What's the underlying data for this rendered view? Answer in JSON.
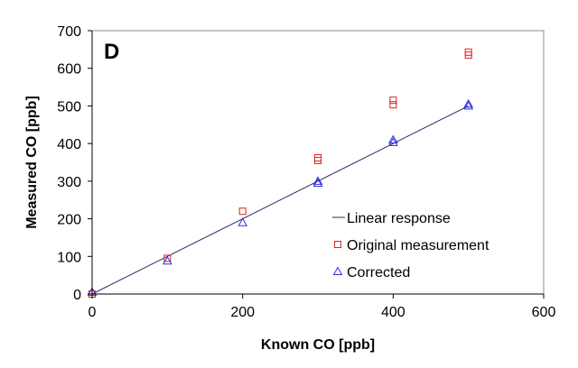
{
  "chart_data": {
    "type": "scatter",
    "panel_label": "D",
    "xlabel": "Known CO [ppb]",
    "ylabel": "Measured CO [ppb]",
    "xlim": [
      0,
      600
    ],
    "ylim": [
      0,
      700
    ],
    "xticks": [
      "0",
      "200",
      "400",
      "600"
    ],
    "yticks": [
      "0",
      "100",
      "200",
      "300",
      "400",
      "500",
      "600",
      "700"
    ],
    "grid": false,
    "legend_position": "bottom-right",
    "series": [
      {
        "name": "Linear response",
        "kind": "line",
        "color": "#2b2b6b",
        "points": [
          [
            0,
            0
          ],
          [
            500,
            500
          ]
        ]
      },
      {
        "name": "Original measurement",
        "kind": "square",
        "color": "#e02020",
        "points": [
          [
            0,
            0
          ],
          [
            100,
            95
          ],
          [
            200,
            220
          ],
          [
            300,
            355
          ],
          [
            300,
            362
          ],
          [
            400,
            503
          ],
          [
            400,
            515
          ],
          [
            500,
            635
          ],
          [
            500,
            643
          ]
        ]
      },
      {
        "name": "Corrected",
        "kind": "triangle",
        "color": "#3030e0",
        "points": [
          [
            0,
            5
          ],
          [
            100,
            88
          ],
          [
            200,
            190
          ],
          [
            300,
            295
          ],
          [
            300,
            300
          ],
          [
            400,
            403
          ],
          [
            400,
            410
          ],
          [
            500,
            500
          ],
          [
            500,
            505
          ]
        ]
      }
    ]
  }
}
